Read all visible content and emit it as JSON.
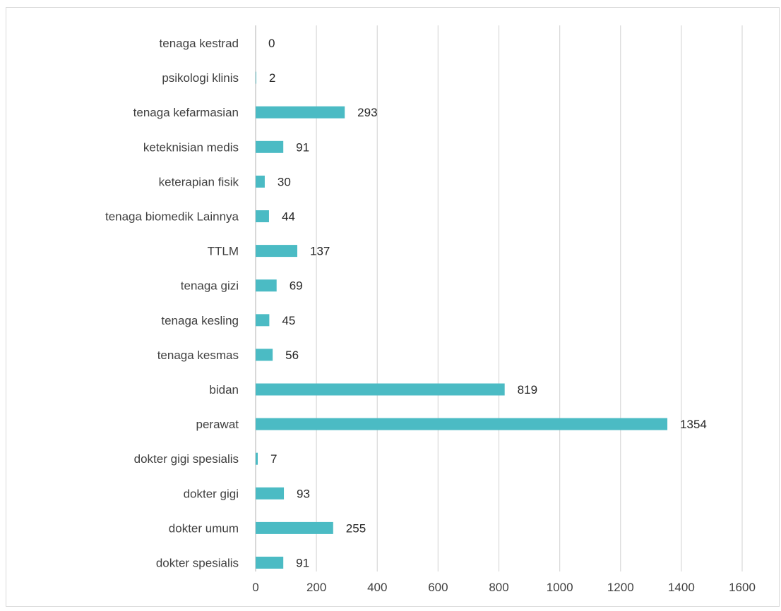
{
  "chart_data": {
    "type": "bar",
    "orientation": "horizontal",
    "categories": [
      "tenaga kestrad",
      "psikologi klinis",
      "tenaga kefarmasian",
      "keteknisian medis",
      "keterapian fisik",
      "tenaga biomedik Lainnya",
      "TTLM",
      "tenaga gizi",
      "tenaga kesling",
      "tenaga kesmas",
      "bidan",
      "perawat",
      "dokter gigi spesialis",
      "dokter gigi",
      "dokter umum",
      "dokter spesialis"
    ],
    "values": [
      0,
      2,
      293,
      91,
      30,
      44,
      137,
      69,
      45,
      56,
      819,
      1354,
      7,
      93,
      255,
      91
    ],
    "xlim": [
      0,
      1600
    ],
    "xticks": [
      0,
      200,
      400,
      600,
      800,
      1000,
      1200,
      1400,
      1600
    ],
    "grid": true,
    "data_labels": true,
    "legend": "none",
    "title": "",
    "xlabel": "",
    "ylabel": ""
  },
  "colors": {
    "bar": "#4BBBC4",
    "grid": "#d9d9d9",
    "axis": "#bfbfbf"
  }
}
